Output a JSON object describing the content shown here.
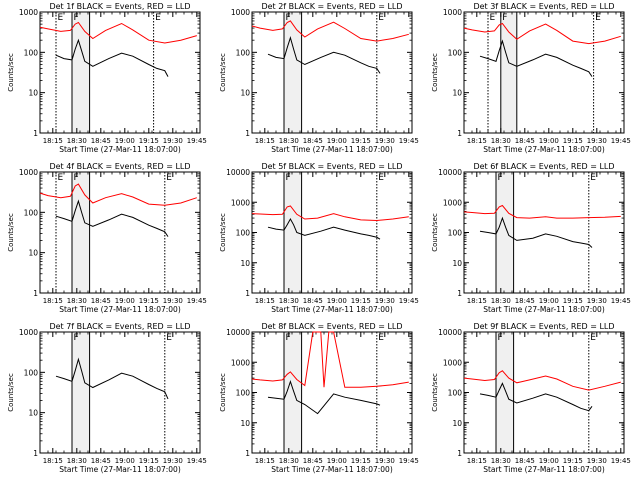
{
  "figure": {
    "ylabel": "Counts/sec",
    "xlabel": "Start Time (27-Mar-11 18:07:00)",
    "x_tick_labels": [
      "18:15",
      "18:30",
      "18:45",
      "19:00",
      "19:15",
      "19:30",
      "19:45"
    ],
    "y_tick_labels": [
      "1",
      "10",
      "100",
      "1000",
      "10000"
    ],
    "colors": {
      "events": "#000000",
      "lld": "#ff0000"
    },
    "interval_labels": [
      "E",
      "F",
      "E"
    ]
  },
  "chart_data": [
    {
      "type": "line",
      "title": "Det 1f BLACK = Events, RED = LLD",
      "xlim": [
        "18:07",
        "19:47"
      ],
      "ylim": [
        1,
        1000
      ],
      "yscale": "log",
      "intervals": [
        "18:17",
        "18:27",
        "18:38",
        "19:18"
      ],
      "series": [
        {
          "name": "Events",
          "x": [
            "18:17",
            "18:22",
            "18:27",
            "18:29",
            "18:31",
            "18:33",
            "18:35",
            "18:40",
            "18:50",
            "18:58",
            "19:05",
            "19:15",
            "19:20",
            "19:25",
            "19:27"
          ],
          "y": [
            85,
            70,
            65,
            120,
            200,
            110,
            60,
            45,
            70,
            95,
            80,
            50,
            40,
            35,
            25
          ]
        },
        {
          "name": "LLD",
          "x": [
            "18:07",
            "18:12",
            "18:20",
            "18:26",
            "18:29",
            "18:31",
            "18:35",
            "18:40",
            "18:48",
            "18:58",
            "19:05",
            "19:15",
            "19:25",
            "19:35",
            "19:45"
          ],
          "y": [
            420,
            380,
            330,
            350,
            500,
            550,
            330,
            220,
            350,
            520,
            360,
            200,
            170,
            200,
            260
          ]
        }
      ]
    },
    {
      "type": "line",
      "title": "Det 2f BLACK = Events, RED = LLD",
      "xlim": [
        "18:07",
        "19:47"
      ],
      "ylim": [
        1,
        1000
      ],
      "yscale": "log",
      "intervals": [
        "18:27",
        "18:38",
        "19:25"
      ],
      "series": [
        {
          "name": "Events",
          "x": [
            "18:17",
            "18:22",
            "18:27",
            "18:29",
            "18:31",
            "18:33",
            "18:35",
            "18:40",
            "18:50",
            "18:58",
            "19:05",
            "19:15",
            "19:20",
            "19:25",
            "19:27"
          ],
          "y": [
            90,
            75,
            70,
            130,
            230,
            120,
            65,
            50,
            75,
            100,
            85,
            55,
            45,
            40,
            30
          ]
        },
        {
          "name": "LLD",
          "x": [
            "18:07",
            "18:12",
            "18:20",
            "18:26",
            "18:29",
            "18:31",
            "18:35",
            "18:40",
            "18:48",
            "18:58",
            "19:05",
            "19:15",
            "19:25",
            "19:35",
            "19:45"
          ],
          "y": [
            450,
            400,
            350,
            380,
            550,
            600,
            360,
            240,
            380,
            560,
            390,
            220,
            190,
            220,
            280
          ]
        }
      ]
    },
    {
      "type": "line",
      "title": "Det 3f BLACK = Events, RED = LLD",
      "xlim": [
        "18:07",
        "19:47"
      ],
      "ylim": [
        1,
        1000
      ],
      "yscale": "log",
      "intervals": [
        "18:22",
        "18:30",
        "18:40",
        "19:28"
      ],
      "series": [
        {
          "name": "Events",
          "x": [
            "18:17",
            "18:22",
            "18:27",
            "18:29",
            "18:31",
            "18:33",
            "18:35",
            "18:40",
            "18:50",
            "18:58",
            "19:05",
            "19:15",
            "19:20",
            "19:25",
            "19:27"
          ],
          "y": [
            80,
            70,
            60,
            110,
            190,
            100,
            55,
            45,
            65,
            90,
            75,
            48,
            40,
            33,
            25
          ]
        },
        {
          "name": "LLD",
          "x": [
            "18:07",
            "18:12",
            "18:20",
            "18:26",
            "18:29",
            "18:31",
            "18:35",
            "18:40",
            "18:48",
            "18:58",
            "19:05",
            "19:15",
            "19:25",
            "19:35",
            "19:45"
          ],
          "y": [
            400,
            360,
            320,
            340,
            480,
            520,
            320,
            210,
            340,
            500,
            350,
            190,
            165,
            190,
            250
          ]
        }
      ]
    },
    {
      "type": "line",
      "title": "Det 4f BLACK = Events, RED = LLD",
      "xlim": [
        "18:07",
        "19:47"
      ],
      "ylim": [
        1,
        1000
      ],
      "yscale": "log",
      "intervals": [
        "18:17",
        "18:27",
        "18:38",
        "19:25"
      ],
      "series": [
        {
          "name": "Events",
          "x": [
            "18:17",
            "18:22",
            "18:27",
            "18:29",
            "18:31",
            "18:33",
            "18:35",
            "18:40",
            "18:50",
            "18:58",
            "19:05",
            "19:15",
            "19:20",
            "19:25",
            "19:27"
          ],
          "y": [
            80,
            70,
            60,
            110,
            190,
            100,
            55,
            45,
            65,
            90,
            75,
            48,
            40,
            33,
            25
          ]
        },
        {
          "name": "LLD",
          "x": [
            "18:07",
            "18:12",
            "18:20",
            "18:26",
            "18:29",
            "18:31",
            "18:35",
            "18:40",
            "18:48",
            "18:58",
            "19:05",
            "19:15",
            "19:25",
            "19:35",
            "19:45"
          ],
          "y": [
            300,
            260,
            230,
            250,
            450,
            500,
            270,
            170,
            230,
            290,
            240,
            160,
            150,
            170,
            230
          ]
        }
      ]
    },
    {
      "type": "line",
      "title": "Det 5f BLACK = Events, RED = LLD",
      "xlim": [
        "18:07",
        "19:47"
      ],
      "ylim": [
        1,
        10000
      ],
      "yscale": "log",
      "intervals": [
        "18:27",
        "18:38",
        "19:25"
      ],
      "series": [
        {
          "name": "Events",
          "x": [
            "18:17",
            "18:22",
            "18:27",
            "18:29",
            "18:31",
            "18:33",
            "18:35",
            "18:40",
            "18:50",
            "18:58",
            "19:05",
            "19:15",
            "19:20",
            "19:25",
            "19:27"
          ],
          "y": [
            150,
            130,
            120,
            180,
            280,
            180,
            100,
            80,
            110,
            150,
            120,
            90,
            80,
            70,
            60
          ]
        },
        {
          "name": "LLD",
          "x": [
            "18:07",
            "18:12",
            "18:20",
            "18:26",
            "18:29",
            "18:31",
            "18:35",
            "18:40",
            "18:48",
            "18:58",
            "19:05",
            "19:15",
            "19:25",
            "19:35",
            "19:45"
          ],
          "y": [
            420,
            410,
            390,
            400,
            700,
            750,
            400,
            280,
            300,
            420,
            330,
            260,
            250,
            280,
            330
          ]
        }
      ]
    },
    {
      "type": "line",
      "title": "Det 6f BLACK = Events, RED = LLD",
      "xlim": [
        "18:07",
        "19:47"
      ],
      "ylim": [
        1,
        10000
      ],
      "yscale": "log",
      "intervals": [
        "18:27",
        "18:38",
        "19:25"
      ],
      "series": [
        {
          "name": "Events",
          "x": [
            "18:17",
            "18:22",
            "18:27",
            "18:29",
            "18:31",
            "18:33",
            "18:35",
            "18:40",
            "18:50",
            "18:58",
            "19:05",
            "19:15",
            "19:20",
            "19:25",
            "19:27"
          ],
          "y": [
            110,
            100,
            90,
            150,
            300,
            150,
            80,
            55,
            65,
            90,
            75,
            50,
            45,
            40,
            32
          ]
        },
        {
          "name": "LLD",
          "x": [
            "18:07",
            "18:12",
            "18:20",
            "18:26",
            "18:29",
            "18:31",
            "18:35",
            "18:40",
            "18:48",
            "18:58",
            "19:05",
            "19:15",
            "19:25",
            "19:35",
            "19:45"
          ],
          "y": [
            480,
            460,
            420,
            430,
            700,
            780,
            430,
            310,
            300,
            330,
            300,
            300,
            310,
            320,
            340
          ]
        }
      ]
    },
    {
      "type": "line",
      "title": "Det 7f BLACK = Events, RED = LLD",
      "xlim": [
        "18:07",
        "19:47"
      ],
      "ylim": [
        1,
        1000
      ],
      "yscale": "log",
      "intervals": [
        "18:27",
        "18:38",
        "19:25"
      ],
      "series": [
        {
          "name": "Events",
          "x": [
            "18:17",
            "18:22",
            "18:27",
            "18:29",
            "18:31",
            "18:33",
            "18:35",
            "18:40",
            "18:50",
            "18:58",
            "19:05",
            "19:15",
            "19:20",
            "19:25",
            "19:27"
          ],
          "y": [
            80,
            70,
            60,
            110,
            210,
            110,
            55,
            42,
            65,
            95,
            80,
            50,
            40,
            33,
            22
          ]
        }
      ]
    },
    {
      "type": "line",
      "title": "Det 8f BLACK = Events, RED = LLD",
      "xlim": [
        "18:07",
        "19:47"
      ],
      "ylim": [
        1,
        10000
      ],
      "yscale": "log",
      "intervals": [
        "18:27",
        "18:38",
        "19:25"
      ],
      "series": [
        {
          "name": "Events",
          "x": [
            "18:17",
            "18:22",
            "18:27",
            "18:29",
            "18:31",
            "18:33",
            "18:35",
            "18:40",
            "18:48",
            "18:58",
            "19:05",
            "19:15",
            "19:20",
            "19:25",
            "19:27"
          ],
          "y": [
            70,
            65,
            60,
            110,
            230,
            110,
            55,
            40,
            20,
            90,
            70,
            55,
            48,
            42,
            38
          ]
        },
        {
          "name": "LLD",
          "x": [
            "18:07",
            "18:12",
            "18:20",
            "18:26",
            "18:29",
            "18:31",
            "18:35",
            "18:40",
            "18:45",
            "18:47",
            "18:50",
            "18:52",
            "18:55",
            "18:58",
            "19:05",
            "19:15",
            "19:25",
            "19:35",
            "19:45"
          ],
          "y": [
            280,
            260,
            240,
            260,
            400,
            480,
            270,
            170,
            10000,
            10000,
            10000,
            150,
            10000,
            10000,
            150,
            150,
            160,
            180,
            220
          ]
        }
      ]
    },
    {
      "type": "line",
      "title": "Det 9f BLACK = Events, RED = LLD",
      "xlim": [
        "18:07",
        "19:47"
      ],
      "ylim": [
        1,
        10000
      ],
      "yscale": "log",
      "intervals": [
        "18:27",
        "18:38",
        "19:25"
      ],
      "series": [
        {
          "name": "Events",
          "x": [
            "18:17",
            "18:22",
            "18:27",
            "18:29",
            "18:31",
            "18:33",
            "18:35",
            "18:40",
            "18:50",
            "18:58",
            "19:05",
            "19:15",
            "19:20",
            "19:25",
            "19:27"
          ],
          "y": [
            90,
            80,
            70,
            120,
            200,
            110,
            60,
            45,
            65,
            90,
            70,
            40,
            30,
            25,
            35
          ]
        },
        {
          "name": "LLD",
          "x": [
            "18:07",
            "18:12",
            "18:20",
            "18:26",
            "18:29",
            "18:31",
            "18:35",
            "18:40",
            "18:48",
            "18:58",
            "19:05",
            "19:15",
            "19:25",
            "19:35",
            "19:45"
          ],
          "y": [
            300,
            280,
            250,
            270,
            450,
            520,
            300,
            210,
            260,
            350,
            280,
            160,
            120,
            160,
            220
          ]
        }
      ]
    }
  ]
}
